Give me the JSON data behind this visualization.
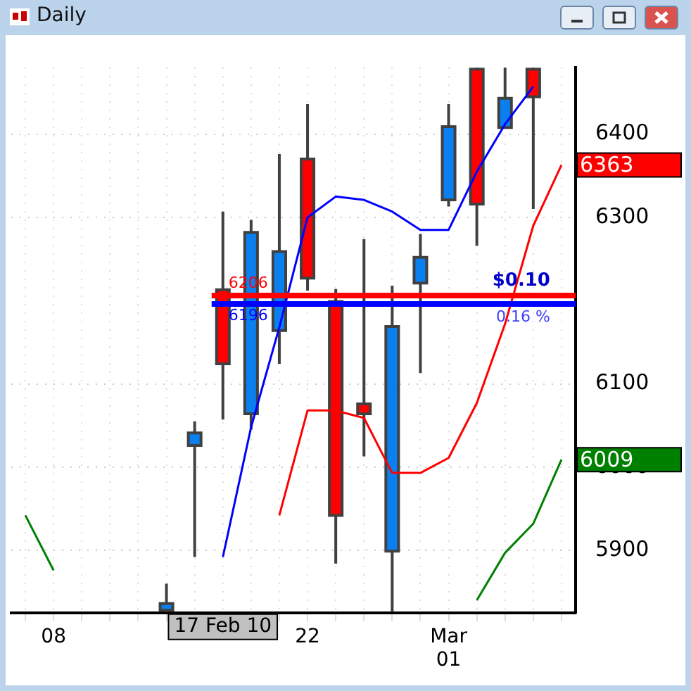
{
  "chart_data": {
    "type": "candlestick",
    "title": "Daily",
    "categories": [
      null,
      "08",
      null,
      null,
      null,
      null,
      null,
      null,
      null,
      null,
      "22",
      null,
      null,
      null,
      null,
      "Mar 01",
      null,
      null,
      null,
      null
    ],
    "ohlc": [
      null,
      null,
      null,
      null,
      null,
      [
        5828,
        5860,
        5826,
        5836
      ],
      [
        6026,
        6055,
        5892,
        6041
      ],
      [
        6213,
        6307,
        6057,
        6124
      ],
      [
        6064,
        6297,
        6045,
        6282
      ],
      [
        6164,
        6376,
        6124,
        6259
      ],
      [
        6370,
        6436,
        6212,
        6227
      ],
      [
        6199,
        6214,
        5884,
        5942
      ],
      [
        6076,
        6274,
        6013,
        6064
      ],
      [
        5899,
        6218,
        5826,
        6169
      ],
      [
        6221,
        6280,
        6113,
        6252
      ],
      [
        6321,
        6436,
        6313,
        6409
      ],
      [
        6478,
        6480,
        6266,
        6316
      ],
      [
        6408,
        6480,
        6408,
        6443
      ],
      [
        6478,
        6480,
        6310,
        6445
      ],
      null
    ],
    "colors": [
      null,
      null,
      null,
      null,
      null,
      "#0a80f0",
      "#0a80f0",
      "#ff0000",
      "#0a80f0",
      "#0a80f0",
      "#ff0000",
      "#ff0000",
      "#ff0000",
      "#0a80f0",
      "#0a80f0",
      "#0a80f0",
      "#ff0000",
      "#0a80f0",
      "#ff0000",
      null
    ],
    "series": [
      {
        "type": "line",
        "color": "#0000ff",
        "values": [
          null,
          null,
          null,
          null,
          null,
          null,
          null,
          5892,
          6048,
          6168,
          6300,
          6325,
          6321,
          6307,
          6285,
          6285,
          6355,
          6412,
          6457,
          null
        ]
      },
      {
        "type": "line",
        "color": "#ff0000",
        "values": [
          null,
          null,
          null,
          null,
          null,
          null,
          null,
          null,
          null,
          5942,
          6068,
          6068,
          6059,
          5993,
          5993,
          6011,
          6077,
          6172,
          6290,
          6363
        ],
        "value_labels": [
          null,
          null,
          null,
          null,
          null,
          null,
          null,
          null,
          null,
          null,
          null,
          null,
          null,
          null,
          null,
          null,
          null,
          null,
          null,
          "6363"
        ]
      },
      {
        "type": "line",
        "color": "#008000",
        "values": [
          5942,
          5876,
          null,
          null,
          null,
          null,
          null,
          null,
          null,
          null,
          null,
          null,
          null,
          null,
          null,
          null,
          5840,
          5897,
          5932,
          6009
        ],
        "value_labels": [
          null,
          null,
          null,
          null,
          null,
          null,
          null,
          null,
          null,
          null,
          null,
          null,
          null,
          null,
          null,
          null,
          null,
          null,
          null,
          "6009"
        ]
      }
    ],
    "ylim": [
      5825,
      6480
    ],
    "yticks": [
      5900,
      6000,
      6100,
      6300,
      6400
    ],
    "grid": true,
    "legend": false,
    "ref_lines": [
      {
        "axis": "y",
        "value": 6206,
        "label": "6206",
        "color": "#ff0000"
      },
      {
        "axis": "y",
        "value": 6196,
        "label": "6196",
        "color": "#0000ff"
      }
    ],
    "annotations": [
      "17 Feb 10",
      "$0.10",
      "0.16 %"
    ]
  }
}
